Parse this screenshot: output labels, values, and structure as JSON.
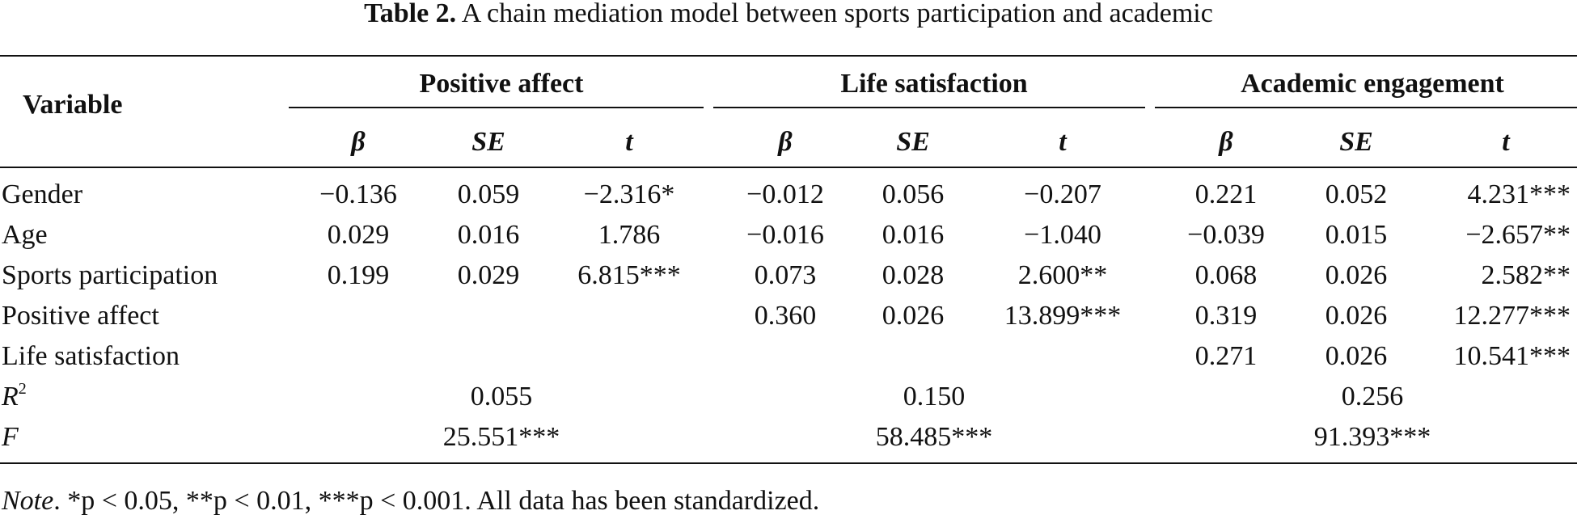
{
  "caption": {
    "label": "Table 2.",
    "text": "A chain mediation model between sports participation and academic"
  },
  "header": {
    "variable": "Variable",
    "groups": [
      "Positive affect",
      "Life satisfaction",
      "Academic engagement"
    ],
    "subcols": [
      "β",
      "SE",
      "t"
    ]
  },
  "rows": [
    {
      "label": "Gender",
      "cells": [
        "−0.136",
        "0.059",
        "−2.316*",
        "−0.012",
        "0.056",
        "−0.207",
        "0.221",
        "0.052",
        "4.231***"
      ]
    },
    {
      "label": "Age",
      "cells": [
        "0.029",
        "0.016",
        "1.786",
        "−0.016",
        "0.016",
        "−1.040",
        "−0.039",
        "0.015",
        "−2.657**"
      ]
    },
    {
      "label": "Sports participation",
      "cells": [
        "0.199",
        "0.029",
        "6.815***",
        "0.073",
        "0.028",
        "2.600**",
        "0.068",
        "0.026",
        "2.582**"
      ]
    },
    {
      "label": "Positive affect",
      "cells": [
        "",
        "",
        "",
        "0.360",
        "0.026",
        "13.899***",
        "0.319",
        "0.026",
        "12.277***"
      ]
    },
    {
      "label": "Life satisfaction",
      "cells": [
        "",
        "",
        "",
        "",
        "",
        "",
        "0.271",
        "0.026",
        "10.541***"
      ]
    }
  ],
  "r2": {
    "label_base": "R",
    "label_sup": "2",
    "values": [
      "0.055",
      "0.150",
      "0.256"
    ]
  },
  "f": {
    "label": "F",
    "values": [
      "25.551***",
      "58.485***",
      "91.393***"
    ]
  },
  "note": {
    "lead": "Note",
    "text": ". *p < 0.05, **p < 0.01, ***p < 0.001. All data has been standardized."
  }
}
